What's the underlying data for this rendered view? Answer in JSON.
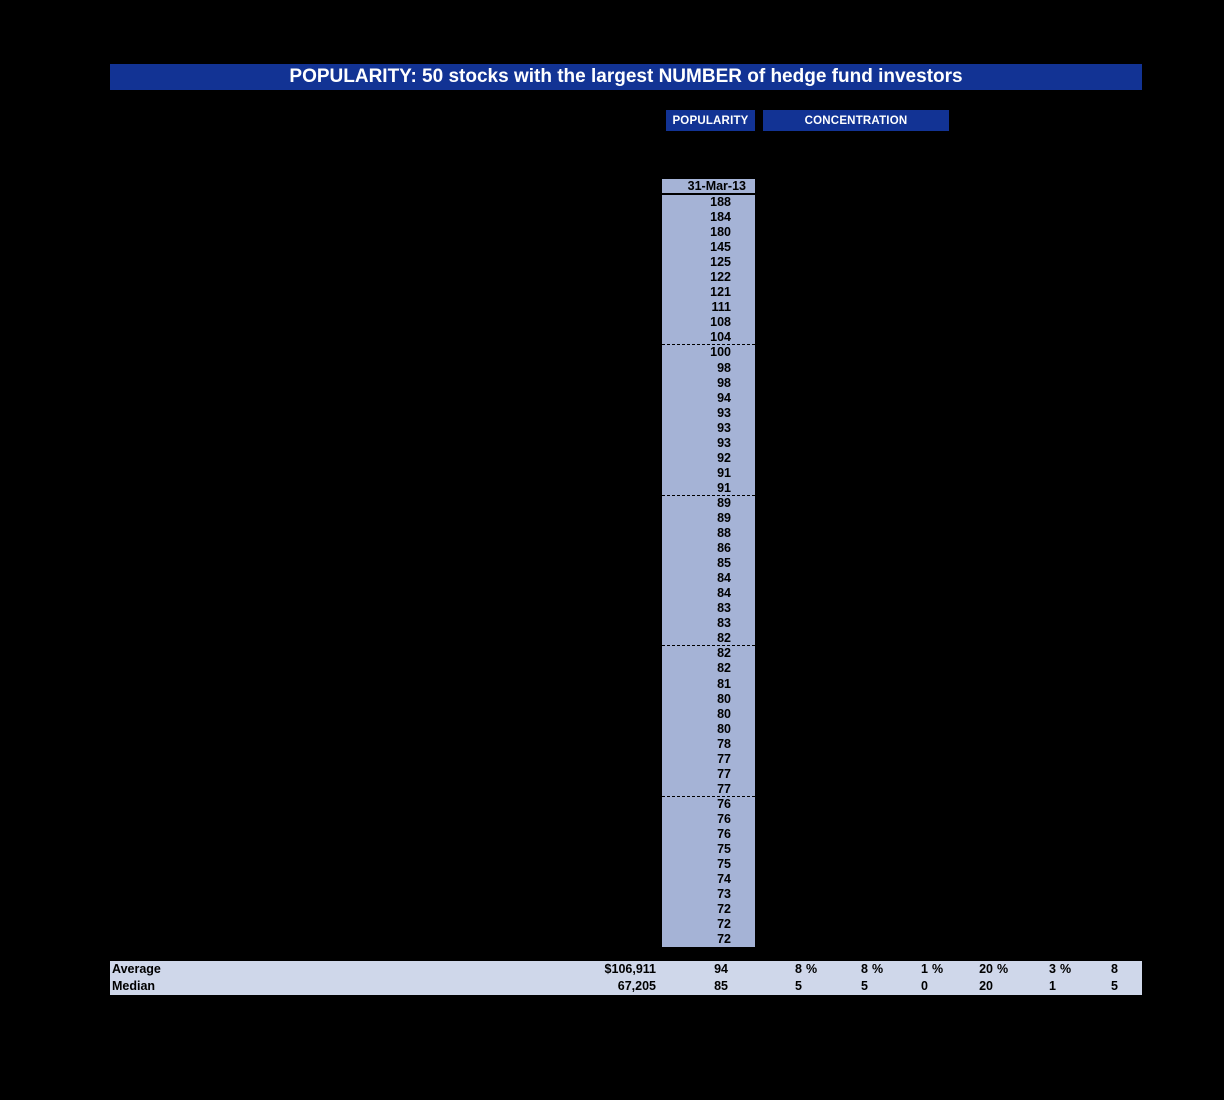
{
  "title_banner": {
    "text": "POPULARITY: 50 stocks with the largest NUMBER of hedge fund investors"
  },
  "tabs": [
    {
      "label": "POPULARITY"
    },
    {
      "label": "CONCENTRATION"
    }
  ],
  "popularity_column": {
    "header": "31-Mar-13",
    "group_size": 10,
    "values": [
      188,
      184,
      180,
      145,
      125,
      122,
      121,
      111,
      108,
      104,
      100,
      98,
      98,
      94,
      93,
      93,
      93,
      92,
      91,
      91,
      89,
      89,
      88,
      86,
      85,
      84,
      84,
      83,
      83,
      82,
      82,
      82,
      81,
      80,
      80,
      80,
      78,
      77,
      77,
      77,
      76,
      76,
      76,
      75,
      75,
      74,
      73,
      72,
      72,
      72
    ]
  },
  "summary": {
    "rows": [
      {
        "label": "Average",
        "cells": [
          {
            "num": "$106,911",
            "unit": ""
          },
          {
            "num": "94",
            "unit": ""
          },
          {
            "num": "8",
            "unit": "%"
          },
          {
            "num": "8",
            "unit": "%"
          },
          {
            "num": "1",
            "unit": "%"
          },
          {
            "num": "20",
            "unit": "%"
          },
          {
            "num": "3",
            "unit": "%"
          },
          {
            "num": "8",
            "unit": ""
          }
        ]
      },
      {
        "label": "Median",
        "cells": [
          {
            "num": "67,205",
            "unit": ""
          },
          {
            "num": "85",
            "unit": ""
          },
          {
            "num": "5",
            "unit": ""
          },
          {
            "num": "5",
            "unit": ""
          },
          {
            "num": "0",
            "unit": ""
          },
          {
            "num": "20",
            "unit": ""
          },
          {
            "num": "1",
            "unit": ""
          },
          {
            "num": "5",
            "unit": ""
          }
        ]
      }
    ]
  },
  "colors": {
    "background": "#000000",
    "banner_blue": "#123394",
    "column_blue": "#a5b3d6",
    "summary_blue": "#cfd7ea",
    "text_dark": "#000000",
    "text_light": "#ffffff"
  }
}
